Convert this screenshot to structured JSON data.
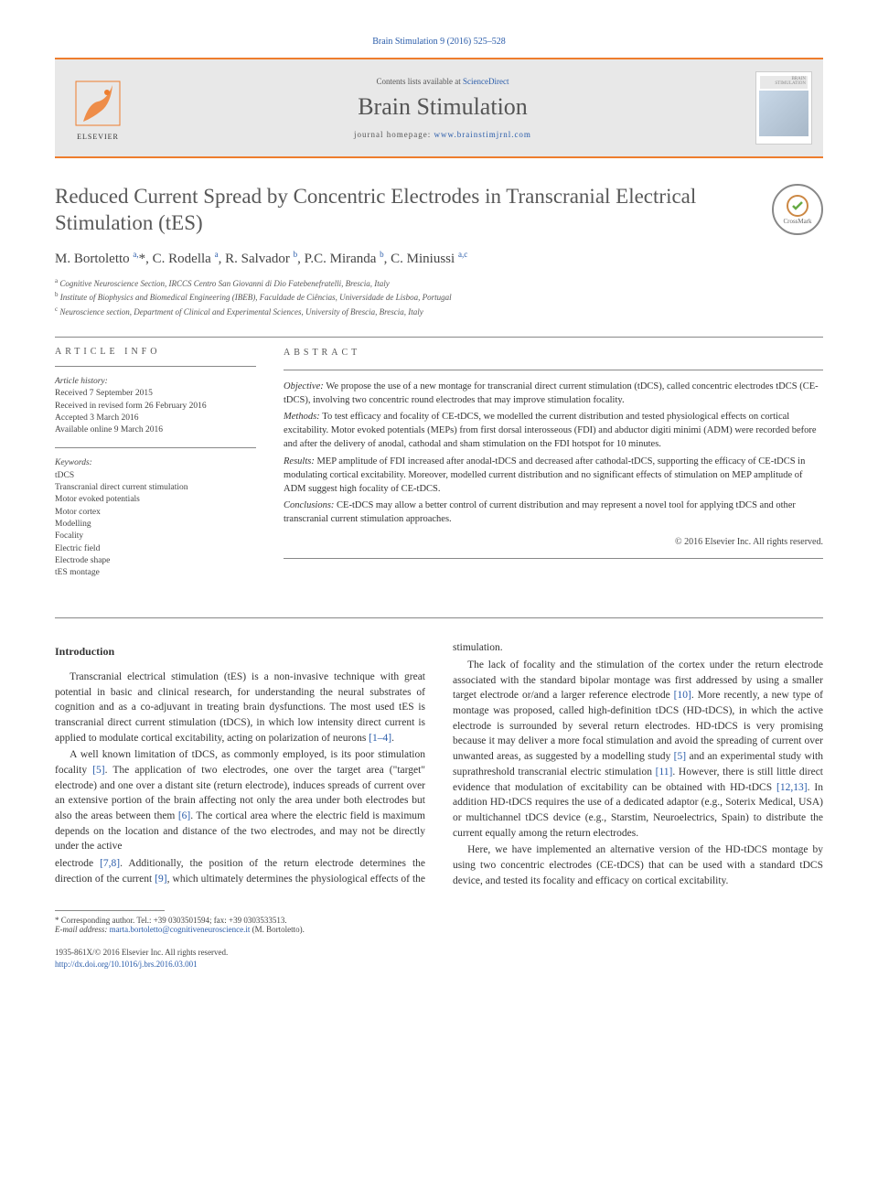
{
  "header": {
    "citation": "Brain Stimulation 9 (2016) 525–528",
    "contents_prefix": "Contents lists available at ",
    "contents_link": "ScienceDirect",
    "journal_name": "Brain Stimulation",
    "homepage_prefix": "journal homepage: ",
    "homepage_link": "www.brainstimjrnl.com",
    "elsevier_label": "ELSEVIER",
    "cover_label": "BRAIN STIMULATION"
  },
  "title": "Reduced Current Spread by Concentric Electrodes in Transcranial Electrical Stimulation (tES)",
  "crossmark_label": "CrossMark",
  "authors_html": "M. Bortoletto <sup>a,</sup>*, C. Rodella <sup>a</sup>, R. Salvador <sup>b</sup>, P.C. Miranda <sup>b</sup>, C. Miniussi <sup>a,c</sup>",
  "affiliations": [
    {
      "sup": "a",
      "text": "Cognitive Neuroscience Section, IRCCS Centro San Giovanni di Dio Fatebenefratelli, Brescia, Italy"
    },
    {
      "sup": "b",
      "text": "Institute of Biophysics and Biomedical Engineering (IBEB), Faculdade de Ciências, Universidade de Lisboa, Portugal"
    },
    {
      "sup": "c",
      "text": "Neuroscience section, Department of Clinical and Experimental Sciences, University of Brescia, Brescia, Italy"
    }
  ],
  "article_info": {
    "header": "ARTICLE INFO",
    "history_label": "Article history:",
    "history": [
      "Received 7 September 2015",
      "Received in revised form 26 February 2016",
      "Accepted 3 March 2016",
      "Available online 9 March 2016"
    ],
    "keywords_label": "Keywords:",
    "keywords": [
      "tDCS",
      "Transcranial direct current stimulation",
      "Motor evoked potentials",
      "Motor cortex",
      "Modelling",
      "Focality",
      "Electric field",
      "Electrode shape",
      "tES montage"
    ]
  },
  "abstract": {
    "header": "ABSTRACT",
    "segments": [
      {
        "label": "Objective:",
        "text": "We propose the use of a new montage for transcranial direct current stimulation (tDCS), called concentric electrodes tDCS (CE-tDCS), involving two concentric round electrodes that may improve stimulation focality."
      },
      {
        "label": "Methods:",
        "text": "To test efficacy and focality of CE-tDCS, we modelled the current distribution and tested physiological effects on cortical excitability. Motor evoked potentials (MEPs) from first dorsal interosseous (FDI) and abductor digiti minimi (ADM) were recorded before and after the delivery of anodal, cathodal and sham stimulation on the FDI hotspot for 10 minutes."
      },
      {
        "label": "Results:",
        "text": "MEP amplitude of FDI increased after anodal-tDCS and decreased after cathodal-tDCS, supporting the efficacy of CE-tDCS in modulating cortical excitability. Moreover, modelled current distribution and no significant effects of stimulation on MEP amplitude of ADM suggest high focality of CE-tDCS."
      },
      {
        "label": "Conclusions:",
        "text": "CE-tDCS may allow a better control of current distribution and may represent a novel tool for applying tDCS and other transcranial current stimulation approaches."
      }
    ],
    "copyright": "© 2016 Elsevier Inc. All rights reserved."
  },
  "body": {
    "heading": "Introduction",
    "p1": "Transcranial electrical stimulation (tES) is a non-invasive technique with great potential in basic and clinical research, for understanding the neural substrates of cognition and as a co-adjuvant in treating brain dysfunctions. The most used tES is transcranial direct current stimulation (tDCS), in which low intensity direct current is applied to modulate cortical excitability, acting on polarization of neurons ",
    "p1_ref": "[1–4]",
    "p1_end": ".",
    "p2a": "A well known limitation of tDCS, as commonly employed, is its poor stimulation focality ",
    "p2a_ref": "[5]",
    "p2b": ". The application of two electrodes, one over the target area (\"target\" electrode) and one over a distant site (return electrode), induces spreads of current over an extensive portion of the brain affecting not only the area under both electrodes but also the areas between them ",
    "p2b_ref": "[6]",
    "p2c": ". The cortical area where the electric field is maximum depends on the location and distance of the two electrodes, and may not be directly under the active",
    "p3a": "electrode ",
    "p3a_ref": "[7,8]",
    "p3b": ". Additionally, the position of the return electrode determines the direction of the current ",
    "p3b_ref": "[9]",
    "p3c": ", which ultimately determines the physiological effects of the stimulation.",
    "p4a": "The lack of focality and the stimulation of the cortex under the return electrode associated with the standard bipolar montage was first addressed by using a smaller target electrode or/and a larger reference electrode ",
    "p4a_ref": "[10]",
    "p4b": ". More recently, a new type of montage was proposed, called high-definition tDCS (HD-tDCS), in which the active electrode is surrounded by several return electrodes. HD-tDCS is very promising because it may deliver a more focal stimulation and avoid the spreading of current over unwanted areas, as suggested by a modelling study ",
    "p4b_ref": "[5]",
    "p4c": " and an experimental study with suprathreshold transcranial electric stimulation ",
    "p4c_ref": "[11]",
    "p4d": ". However, there is still little direct evidence that modulation of excitability can be obtained with HD-tDCS ",
    "p4d_ref": "[12,13]",
    "p4e": ". In addition HD-tDCS requires the use of a dedicated adaptor (e.g., Soterix Medical, USA) or multichannel tDCS device (e.g., Starstim, Neuroelectrics, Spain) to distribute the current equally among the return electrodes.",
    "p5": "Here, we have implemented an alternative version of the HD-tDCS montage by using two concentric electrodes (CE-tDCS) that can be used with a standard tDCS device, and tested its focality and efficacy on cortical excitability."
  },
  "footer": {
    "corr_label": "* Corresponding author. Tel.: +39 0303501594; fax: +39 0303533513.",
    "email_label": "E-mail address:",
    "email": "marta.bortoletto@cognitiveneuroscience.it",
    "email_suffix": "(M. Bortoletto).",
    "issn": "1935-861X/© 2016 Elsevier Inc. All rights reserved.",
    "doi": "http://dx.doi.org/10.1016/j.brs.2016.03.001"
  },
  "colors": {
    "accent_orange": "#ee7d2d",
    "link_blue": "#2a5caa",
    "gray_bg": "#e8e8e8",
    "text_gray": "#585858"
  }
}
